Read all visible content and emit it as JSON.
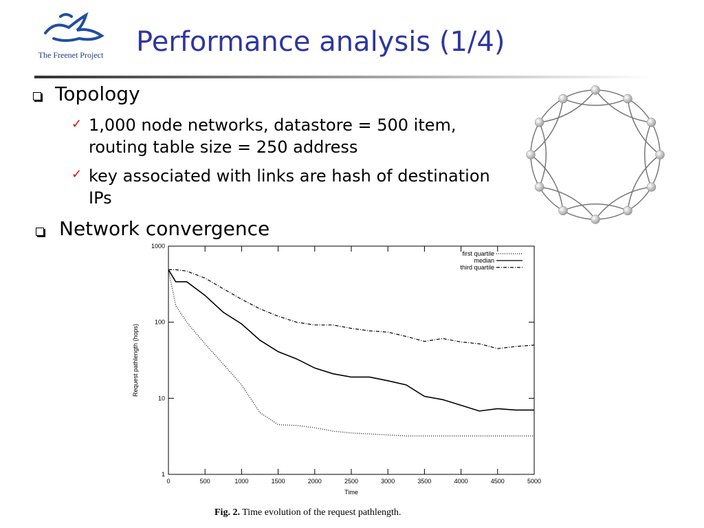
{
  "header": {
    "title": "Performance analysis (1/4)",
    "logo_text": "The Freenet Project"
  },
  "bullets": [
    {
      "text": "Topology",
      "items": [
        "1,000 node networks, datastore = 500 item, routing table size = 250 address",
        "key associated with links are hash of destination IPs"
      ]
    },
    {
      "text": "Network convergence",
      "items": []
    }
  ],
  "caption": {
    "label": "Fig. 2.",
    "text": "Time evolution of the request pathlength."
  },
  "chart_data": {
    "type": "line",
    "x_label": "Time",
    "y_label": "Request pathlength (hops)",
    "log_y": true,
    "legend": "top-right",
    "x": [
      0,
      100,
      250,
      500,
      750,
      1000,
      1250,
      1500,
      1750,
      2000,
      2250,
      2500,
      2750,
      3000,
      3250,
      3500,
      3750,
      4000,
      4250,
      4500,
      4750,
      5000
    ],
    "series": [
      {
        "name": "first quartile",
        "color": "#000000",
        "style": "dotted",
        "values": [
          490,
          165,
          100,
          52,
          28,
          15,
          6.5,
          4.5,
          4.4,
          4.1,
          3.7,
          3.5,
          3.4,
          3.3,
          3.2,
          3.2,
          3.2,
          3.2,
          3.2,
          3.2,
          3.2,
          3.2
        ]
      },
      {
        "name": "median",
        "color": "#000000",
        "style": "solid",
        "values": [
          490,
          340,
          340,
          225,
          135,
          95,
          58,
          41,
          33,
          25,
          21,
          19,
          19,
          17,
          15,
          10.6,
          9.6,
          8.1,
          6.8,
          7.3,
          7,
          7
        ]
      },
      {
        "name": "third quartile",
        "color": "#000000",
        "style": "dashdot",
        "values": [
          490,
          490,
          470,
          380,
          275,
          200,
          150,
          120,
          100,
          92,
          92,
          83,
          77,
          74,
          65,
          56,
          61,
          55,
          52,
          45,
          48,
          50
        ]
      }
    ],
    "xlim": [
      0,
      5000
    ],
    "xticks": [
      0,
      500,
      1000,
      1500,
      2000,
      2500,
      3000,
      3500,
      4000,
      4500,
      5000
    ],
    "ylim": [
      1,
      1000
    ],
    "yticks": [
      1,
      10,
      100,
      1000
    ]
  }
}
